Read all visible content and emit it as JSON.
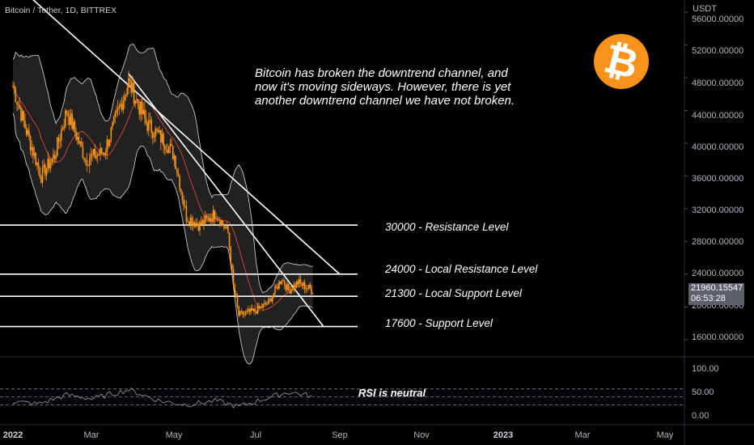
{
  "symbol": "Bitcoin / Tether, 1D, BITTREX",
  "note": "Bitcoin has broken the downtrend channel, and now it's moving sideways. However, there is yet another downtrend channel we have not broken.",
  "rsi_note": "RSI is neutral",
  "currency": "USDT",
  "last_price": "21960.15547",
  "countdown": "06:53:28",
  "logo_glyph": "₿",
  "colors": {
    "candle": "#f7931a",
    "levels": "#ffffff",
    "bands": "#ffffff",
    "basis": "#e0433b",
    "logo": "#f7931a",
    "price_tag": "#5d606b"
  },
  "chart_data": {
    "type": "line",
    "title": "",
    "x_ticks": [
      "2022",
      "Mar",
      "May",
      "Jul",
      "Sep",
      "Nov",
      "2023",
      "Mar",
      "May"
    ],
    "y_ticks": [
      "56000.00000",
      "52000.00000",
      "48000.00000",
      "44000.00000",
      "40000.00000",
      "36000.00000",
      "32000.00000",
      "28000.00000",
      "24000.00000",
      "20000.00000",
      "16000.00000"
    ],
    "ylim": [
      14000,
      57500
    ],
    "levels": [
      {
        "label": "30000 - Resistance Level",
        "value": 30000
      },
      {
        "label": "24000 - Local Resistance Level",
        "value": 24000
      },
      {
        "label": "21300 - Local Support Level",
        "value": 21300
      },
      {
        "label": "17600 - Support Level",
        "value": 17600
      }
    ],
    "price_series": {
      "dates": [
        "2022-01-01",
        "2022-01-10",
        "2022-01-22",
        "2022-02-01",
        "2022-02-10",
        "2022-02-24",
        "2022-03-10",
        "2022-03-28",
        "2022-04-10",
        "2022-04-25",
        "2022-05-01",
        "2022-05-10",
        "2022-05-20",
        "2022-06-01",
        "2022-06-10",
        "2022-06-14",
        "2022-06-18",
        "2022-06-30",
        "2022-07-10",
        "2022-07-20",
        "2022-07-25",
        "2022-08-01",
        "2022-08-12"
      ],
      "close": [
        47000,
        42000,
        36000,
        38500,
        44000,
        38000,
        39000,
        47500,
        42500,
        40000,
        38500,
        31000,
        30000,
        31500,
        29000,
        22500,
        19000,
        19500,
        20500,
        23500,
        22000,
        23000,
        22000
      ]
    },
    "downtrend_lines": [
      {
        "from": [
          "2022-01-06",
          59000
        ],
        "to": [
          "2022-09-01",
          24000
        ]
      },
      {
        "from": [
          "2022-03-28",
          48500
        ],
        "to": [
          "2022-08-20",
          17600
        ]
      }
    ],
    "rsi": {
      "ticks": [
        "100.00",
        "50.00",
        "0.00"
      ],
      "ylim": [
        0,
        100
      ],
      "bands": [
        70,
        30
      ],
      "dates": [
        "2022-01-01",
        "2022-01-20",
        "2022-02-10",
        "2022-03-01",
        "2022-03-28",
        "2022-04-20",
        "2022-05-10",
        "2022-06-01",
        "2022-06-18",
        "2022-07-10",
        "2022-07-25",
        "2022-08-12"
      ],
      "values": [
        38,
        32,
        55,
        45,
        68,
        40,
        30,
        40,
        25,
        48,
        62,
        52
      ]
    }
  }
}
